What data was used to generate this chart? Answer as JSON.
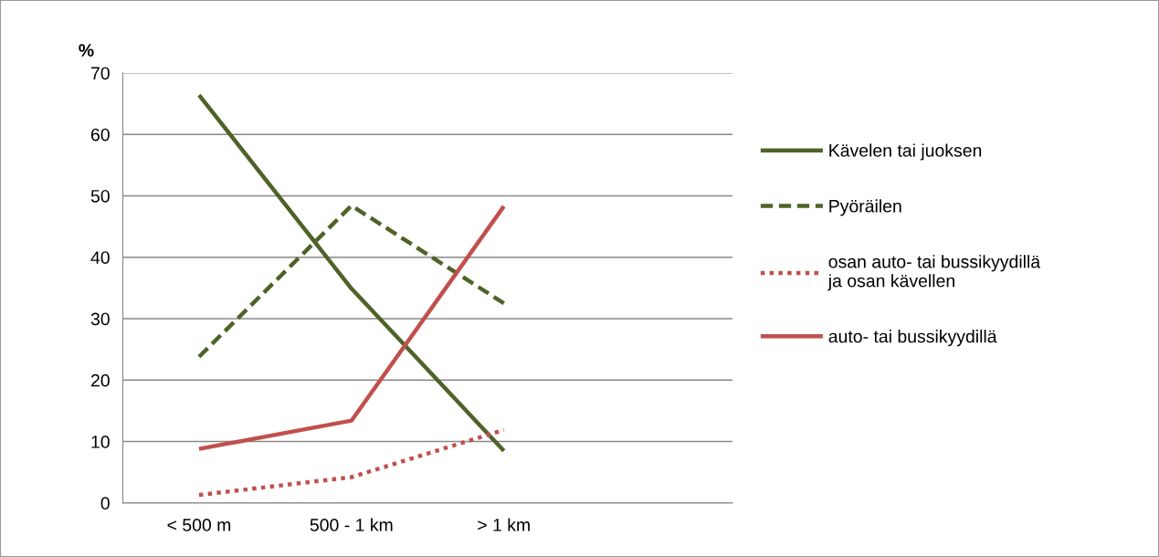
{
  "chart_data": {
    "type": "line",
    "ylabel": "%",
    "categories": [
      "< 500 m",
      "500 - 1 km",
      "> 1 km",
      null
    ],
    "series": [
      {
        "name": "Kävelen tai juoksen",
        "color": "#4f6228",
        "line_style": "solid",
        "values": [
          66.4,
          34.9,
          8.5,
          null
        ]
      },
      {
        "name": "Pyöräilen",
        "color": "#4f6228",
        "line_style": "dashed",
        "values": [
          23.8,
          48.4,
          32.5,
          null
        ]
      },
      {
        "name": "osan auto- tai bussikyydillä\nja osan kävellen",
        "color": "#c0504d",
        "line_style": "dotted",
        "values": [
          1.3,
          4.2,
          11.9,
          null
        ]
      },
      {
        "name": "auto- tai bussikyydillä",
        "color": "#c0504d",
        "line_style": "solid",
        "values": [
          8.8,
          13.4,
          48.3,
          null
        ]
      }
    ],
    "ylim": [
      0,
      70
    ],
    "yticks": [
      0,
      10,
      20,
      30,
      40,
      50,
      60,
      70
    ],
    "grid": "y",
    "legend": "right",
    "marker": "none"
  }
}
